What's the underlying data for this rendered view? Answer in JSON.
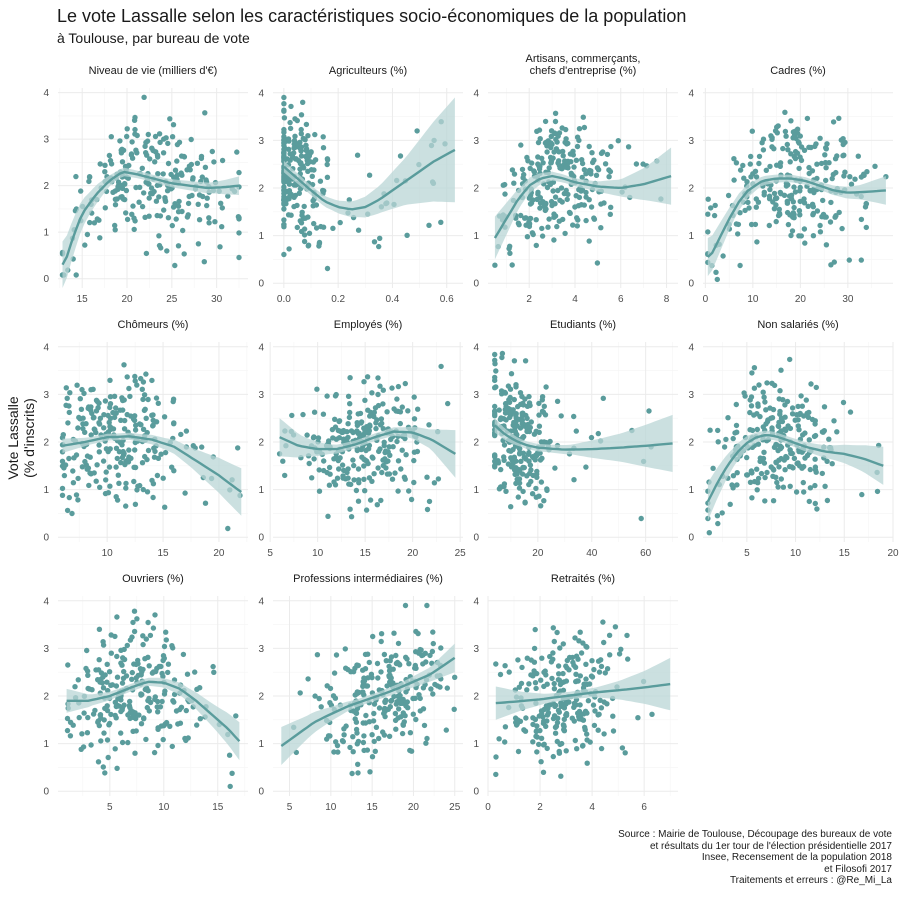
{
  "header": {
    "title": "Le vote Lassalle selon les caractéristiques socio-économiques de la population",
    "subtitle": "à Toulouse, par bureau de vote"
  },
  "axes": {
    "ylabel_line1": "Vote Lassalle",
    "ylabel_line2": "(% d'inscrits)"
  },
  "caption": {
    "lines": [
      "Source : Mairie de Toulouse, Découpage des bureaux de vote",
      "et résultats du 1er tour de l'élection présidentielle 2017",
      "Insee, Recensement de la population 2018",
      "et Filosofi 2017",
      "Traitements et erreurs : @Re_Mi_La"
    ]
  },
  "colors": {
    "points": "#5a9c9c",
    "smooth_line": "#5a9c9c",
    "confidence_band": "#b9d6d6",
    "grid_major": "#ebebeb",
    "grid_minor": "#f5f5f5",
    "text": "#1a1a1a",
    "ticks": "#4d4d4d"
  },
  "chart_data": [
    {
      "type": "scatter",
      "facet": "Niveau de vie (milliers d'€)",
      "title_lines": [
        "Niveau de vie (milliers d'€)"
      ],
      "xlim": [
        12.3,
        33.5
      ],
      "ylim": [
        -0.2,
        4.1
      ],
      "xticks": [
        15,
        20,
        25,
        30
      ],
      "yticks": [
        0,
        1,
        2,
        3,
        4
      ],
      "xrange": [
        12.8,
        32.5
      ],
      "trend": [
        [
          13,
          0.3
        ],
        [
          14,
          0.9
        ],
        [
          15,
          1.4
        ],
        [
          16.5,
          1.8
        ],
        [
          18,
          2.1
        ],
        [
          19.5,
          2.3
        ],
        [
          21,
          2.25
        ],
        [
          23,
          2.15
        ],
        [
          25,
          2.05
        ],
        [
          27,
          2.0
        ],
        [
          29,
          1.95
        ],
        [
          31,
          1.97
        ],
        [
          32.5,
          2.0
        ]
      ],
      "band": [
        0.5,
        0.25,
        0.1,
        0.08,
        0.08,
        0.1,
        0.12,
        0.2
      ],
      "cloud": {
        "x_center": 23,
        "x_spread": 4.5,
        "y_center": 2.1,
        "y_spread": 0.65,
        "n": 260
      }
    },
    {
      "type": "scatter",
      "facet": "Agriculteurs (%)",
      "title_lines": [
        "Agriculteurs (%)"
      ],
      "xlim": [
        -0.04,
        0.66
      ],
      "ylim": [
        -0.1,
        4.1
      ],
      "xticks": [
        0.0,
        0.2,
        0.4,
        0.6
      ],
      "yticks": [
        0,
        1,
        2,
        3,
        4
      ],
      "xrange": [
        0,
        0.63
      ],
      "trend": [
        [
          0,
          2.45
        ],
        [
          0.05,
          2.2
        ],
        [
          0.1,
          1.95
        ],
        [
          0.15,
          1.72
        ],
        [
          0.2,
          1.6
        ],
        [
          0.25,
          1.55
        ],
        [
          0.3,
          1.6
        ],
        [
          0.35,
          1.75
        ],
        [
          0.4,
          1.95
        ],
        [
          0.45,
          2.15
        ],
        [
          0.5,
          2.35
        ],
        [
          0.55,
          2.55
        ],
        [
          0.63,
          2.8
        ]
      ],
      "band": [
        0.12,
        0.1,
        0.12,
        0.18,
        0.3,
        0.5,
        0.8,
        1.1
      ],
      "cloud": {
        "x_center": 0.04,
        "x_spread": 0.06,
        "y_center": 2.1,
        "y_spread": 0.65,
        "n": 240
      }
    },
    {
      "type": "scatter",
      "facet": "Artisans, commerçants, chefs d'entreprise (%)",
      "title_lines": [
        "Artisans, commerçants,",
        "chefs d'entreprise (%)"
      ],
      "xlim": [
        0.2,
        8.5
      ],
      "ylim": [
        -0.1,
        4.1
      ],
      "xticks": [
        2,
        4,
        6,
        8
      ],
      "yticks": [
        0,
        1,
        2,
        3,
        4
      ],
      "xrange": [
        0.5,
        8.2
      ],
      "trend": [
        [
          0.5,
          0.95
        ],
        [
          1,
          1.35
        ],
        [
          1.5,
          1.75
        ],
        [
          2,
          2.05
        ],
        [
          2.5,
          2.2
        ],
        [
          3,
          2.25
        ],
        [
          3.5,
          2.2
        ],
        [
          4,
          2.12
        ],
        [
          5,
          2.03
        ],
        [
          6,
          2.0
        ],
        [
          7,
          2.08
        ],
        [
          8.2,
          2.25
        ]
      ],
      "band": [
        0.45,
        0.2,
        0.1,
        0.08,
        0.1,
        0.18,
        0.35,
        0.6
      ],
      "cloud": {
        "x_center": 3.2,
        "x_spread": 1.2,
        "y_center": 2.1,
        "y_spread": 0.65,
        "n": 260
      }
    },
    {
      "type": "scatter",
      "facet": "Cadres (%)",
      "title_lines": [
        "Cadres (%)"
      ],
      "xlim": [
        -0.5,
        39.5
      ],
      "ylim": [
        -0.1,
        4.1
      ],
      "xticks": [
        0,
        10,
        20,
        30
      ],
      "yticks": [
        0,
        1,
        2,
        3,
        4
      ],
      "xrange": [
        0.5,
        38
      ],
      "trend": [
        [
          1,
          0.55
        ],
        [
          3,
          0.95
        ],
        [
          5,
          1.35
        ],
        [
          7,
          1.7
        ],
        [
          9,
          1.95
        ],
        [
          12,
          2.15
        ],
        [
          15,
          2.2
        ],
        [
          18,
          2.2
        ],
        [
          21,
          2.15
        ],
        [
          24,
          2.05
        ],
        [
          27,
          1.95
        ],
        [
          30,
          1.9
        ],
        [
          34,
          1.92
        ],
        [
          38,
          1.95
        ]
      ],
      "band": [
        0.4,
        0.2,
        0.1,
        0.08,
        0.08,
        0.1,
        0.15,
        0.3
      ],
      "cloud": {
        "x_center": 18,
        "x_spread": 8,
        "y_center": 2.1,
        "y_spread": 0.65,
        "n": 260
      }
    },
    {
      "type": "scatter",
      "facet": "Chômeurs (%)",
      "title_lines": [
        "Chômeurs (%)"
      ],
      "xlim": [
        5.6,
        22.6
      ],
      "ylim": [
        -0.1,
        4.1
      ],
      "xticks": [
        10,
        15,
        20
      ],
      "yticks": [
        0,
        1,
        2,
        3,
        4
      ],
      "xrange": [
        6,
        22
      ],
      "trend": [
        [
          6,
          1.92
        ],
        [
          8,
          2.0
        ],
        [
          10,
          2.1
        ],
        [
          12,
          2.12
        ],
        [
          14,
          2.05
        ],
        [
          16,
          1.9
        ],
        [
          17,
          1.75
        ],
        [
          18,
          1.6
        ],
        [
          19,
          1.45
        ],
        [
          20,
          1.3
        ],
        [
          21,
          1.12
        ],
        [
          22,
          0.95
        ]
      ],
      "band": [
        0.15,
        0.08,
        0.07,
        0.08,
        0.12,
        0.2,
        0.35,
        0.5
      ],
      "cloud": {
        "x_center": 11,
        "x_spread": 3,
        "y_center": 2.1,
        "y_spread": 0.65,
        "n": 260
      }
    },
    {
      "type": "scatter",
      "facet": "Employés (%)",
      "title_lines": [
        "Employés (%)"
      ],
      "xlim": [
        5.3,
        25.3
      ],
      "ylim": [
        -0.1,
        4.1
      ],
      "xticks": [
        5,
        10,
        15,
        20,
        25
      ],
      "yticks": [
        0,
        1,
        2,
        3,
        4
      ],
      "xrange": [
        6,
        24.5
      ],
      "trend": [
        [
          6,
          2.1
        ],
        [
          8,
          1.92
        ],
        [
          10,
          1.85
        ],
        [
          12,
          1.85
        ],
        [
          14,
          1.95
        ],
        [
          16,
          2.1
        ],
        [
          18,
          2.22
        ],
        [
          20,
          2.2
        ],
        [
          22,
          2.05
        ],
        [
          24.5,
          1.75
        ]
      ],
      "band": [
        0.4,
        0.2,
        0.1,
        0.08,
        0.08,
        0.1,
        0.2,
        0.5
      ],
      "cloud": {
        "x_center": 14.5,
        "x_spread": 3.5,
        "y_center": 2.1,
        "y_spread": 0.65,
        "n": 260
      }
    },
    {
      "type": "scatter",
      "facet": "Etudiants (%)",
      "title_lines": [
        "Etudiants (%)"
      ],
      "xlim": [
        1.5,
        72
      ],
      "ylim": [
        -0.1,
        4.1
      ],
      "xticks": [
        20,
        40,
        60
      ],
      "yticks": [
        0,
        1,
        2,
        3,
        4
      ],
      "xrange": [
        4,
        70
      ],
      "trend": [
        [
          4,
          2.35
        ],
        [
          8,
          2.15
        ],
        [
          12,
          2.02
        ],
        [
          16,
          1.93
        ],
        [
          20,
          1.88
        ],
        [
          30,
          1.84
        ],
        [
          40,
          1.85
        ],
        [
          50,
          1.88
        ],
        [
          60,
          1.92
        ],
        [
          70,
          1.97
        ]
      ],
      "band": [
        0.15,
        0.08,
        0.08,
        0.1,
        0.2,
        0.3,
        0.45,
        0.6
      ],
      "cloud": {
        "x_center": 12,
        "x_spread": 6,
        "y_center": 2.1,
        "y_spread": 0.65,
        "n": 260
      }
    },
    {
      "type": "scatter",
      "facet": "Non salariés (%)",
      "title_lines": [
        "Non salariés (%)"
      ],
      "xlim": [
        0.5,
        20
      ],
      "ylim": [
        -0.1,
        4.1
      ],
      "xticks": [
        5,
        10,
        15,
        20
      ],
      "yticks": [
        0,
        1,
        2,
        3,
        4
      ],
      "xrange": [
        1,
        19
      ],
      "trend": [
        [
          1,
          0.75
        ],
        [
          2,
          1.15
        ],
        [
          3,
          1.5
        ],
        [
          4,
          1.78
        ],
        [
          5,
          1.98
        ],
        [
          6,
          2.1
        ],
        [
          7,
          2.15
        ],
        [
          8,
          2.12
        ],
        [
          9,
          2.05
        ],
        [
          11,
          1.9
        ],
        [
          13,
          1.8
        ],
        [
          15,
          1.75
        ],
        [
          17,
          1.65
        ],
        [
          19,
          1.5
        ]
      ],
      "band": [
        0.4,
        0.2,
        0.1,
        0.08,
        0.1,
        0.15,
        0.25,
        0.4
      ],
      "cloud": {
        "x_center": 7.5,
        "x_spread": 2.8,
        "y_center": 2.1,
        "y_spread": 0.65,
        "n": 260
      }
    },
    {
      "type": "scatter",
      "facet": "Ouvriers (%)",
      "title_lines": [
        "Ouvriers (%)"
      ],
      "xlim": [
        0.2,
        17.8
      ],
      "ylim": [
        -0.1,
        4.1
      ],
      "xticks": [
        5,
        10,
        15
      ],
      "yticks": [
        0,
        1,
        2,
        3,
        4
      ],
      "xrange": [
        1,
        17
      ],
      "trend": [
        [
          1,
          1.9
        ],
        [
          3,
          1.9
        ],
        [
          5,
          2.0
        ],
        [
          7,
          2.18
        ],
        [
          8.5,
          2.3
        ],
        [
          10,
          2.28
        ],
        [
          11.5,
          2.15
        ],
        [
          13,
          1.9
        ],
        [
          14.5,
          1.6
        ],
        [
          16,
          1.3
        ],
        [
          17,
          1.05
        ]
      ],
      "band": [
        0.25,
        0.12,
        0.08,
        0.08,
        0.1,
        0.15,
        0.25,
        0.4
      ],
      "cloud": {
        "x_center": 7.5,
        "x_spread": 3,
        "y_center": 2.1,
        "y_spread": 0.65,
        "n": 260
      }
    },
    {
      "type": "scatter",
      "facet": "Professions intermédiaires (%)",
      "title_lines": [
        "Professions intermédiaires (%)"
      ],
      "xlim": [
        3,
        26
      ],
      "ylim": [
        -0.1,
        4.1
      ],
      "xticks": [
        5,
        10,
        15,
        20,
        25
      ],
      "yticks": [
        0,
        1,
        2,
        3,
        4
      ],
      "xrange": [
        4,
        25
      ],
      "trend": [
        [
          4,
          0.95
        ],
        [
          6,
          1.2
        ],
        [
          8,
          1.45
        ],
        [
          10,
          1.62
        ],
        [
          12,
          1.78
        ],
        [
          14,
          1.9
        ],
        [
          16,
          2.02
        ],
        [
          18,
          2.15
        ],
        [
          20,
          2.3
        ],
        [
          22,
          2.45
        ],
        [
          25,
          2.8
        ]
      ],
      "band": [
        0.4,
        0.25,
        0.15,
        0.08,
        0.08,
        0.1,
        0.15,
        0.3
      ],
      "cloud": {
        "x_center": 17,
        "x_spread": 3.5,
        "y_center": 2.1,
        "y_spread": 0.65,
        "n": 260
      }
    },
    {
      "type": "scatter",
      "facet": "Retraités (%)",
      "title_lines": [
        "Retraités (%)"
      ],
      "xlim": [
        0,
        7.3
      ],
      "ylim": [
        -0.1,
        4.1
      ],
      "xticks": [
        0,
        2,
        4,
        6
      ],
      "yticks": [
        0,
        1,
        2,
        3,
        4
      ],
      "xrange": [
        0.3,
        7
      ],
      "trend": [
        [
          0.3,
          1.85
        ],
        [
          1,
          1.88
        ],
        [
          2,
          1.93
        ],
        [
          3,
          2.0
        ],
        [
          4,
          2.07
        ],
        [
          5,
          2.12
        ],
        [
          6,
          2.18
        ],
        [
          7,
          2.25
        ]
      ],
      "band": [
        0.35,
        0.2,
        0.1,
        0.08,
        0.1,
        0.2,
        0.35,
        0.55
      ],
      "cloud": {
        "x_center": 2.8,
        "x_spread": 1.1,
        "y_center": 2.1,
        "y_spread": 0.65,
        "n": 260
      }
    }
  ]
}
